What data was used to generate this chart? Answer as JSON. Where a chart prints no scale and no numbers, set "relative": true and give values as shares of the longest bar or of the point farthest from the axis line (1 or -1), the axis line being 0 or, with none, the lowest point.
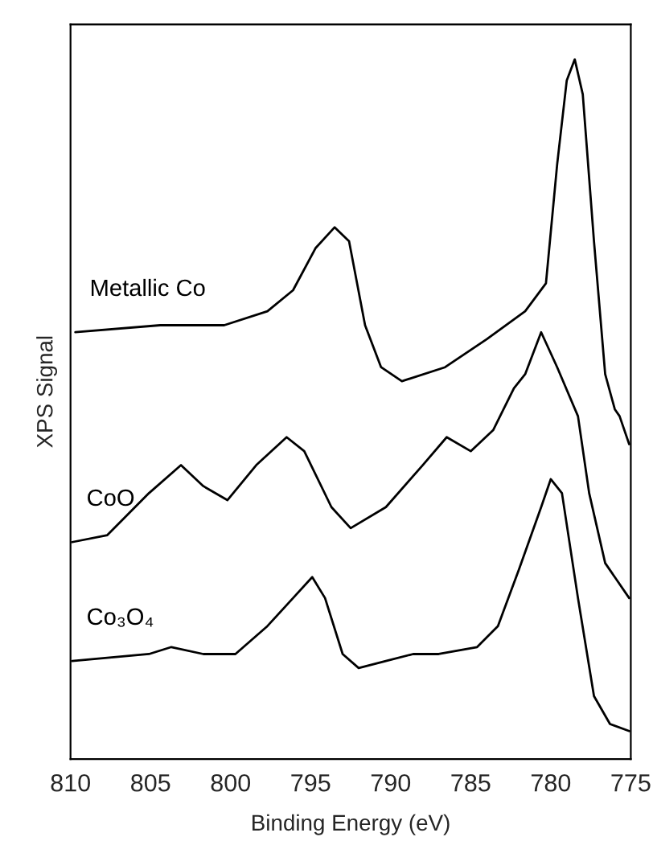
{
  "chart_data": {
    "type": "line",
    "relative": true,
    "xlabel": "Binding Energy (eV)",
    "ylabel": "XPS Signal",
    "xlim": [
      810,
      775
    ],
    "xticks": [
      810,
      805,
      800,
      795,
      790,
      785,
      780,
      775
    ],
    "grid": false,
    "legend": false,
    "marker": "none",
    "line_style": "solid",
    "tick_labels": "x",
    "series": [
      {
        "name": "Metallic Co",
        "color": "#000000",
        "x": [
          809.7,
          804.4,
          800.4,
          797.7,
          796.1,
          794.7,
          793.5,
          792.6,
          791.6,
          790.6,
          789.3,
          786.6,
          784.0,
          781.6,
          780.3,
          779.6,
          779.0,
          778.5,
          778.0,
          777.3,
          776.6,
          776.0,
          775.7,
          775.1
        ],
        "values": [
          0.61,
          0.62,
          0.62,
          0.64,
          0.67,
          0.73,
          0.76,
          0.74,
          0.62,
          0.56,
          0.54,
          0.56,
          0.6,
          0.64,
          0.68,
          0.85,
          0.97,
          1.0,
          0.95,
          0.74,
          0.55,
          0.5,
          0.49,
          0.45
        ]
      },
      {
        "name": "CoO",
        "color": "#000000",
        "x": [
          809.9,
          807.7,
          805.1,
          803.1,
          801.7,
          800.2,
          798.4,
          796.5,
          795.4,
          793.7,
          792.5,
          790.3,
          788.0,
          786.5,
          785.0,
          783.6,
          782.3,
          781.6,
          780.6,
          779.6,
          778.3,
          777.6,
          776.6,
          775.1
        ],
        "values": [
          0.31,
          0.32,
          0.38,
          0.42,
          0.39,
          0.37,
          0.42,
          0.46,
          0.44,
          0.36,
          0.33,
          0.36,
          0.42,
          0.46,
          0.44,
          0.47,
          0.53,
          0.55,
          0.61,
          0.56,
          0.49,
          0.38,
          0.28,
          0.23
        ]
      },
      {
        "name": "Co₃O₄",
        "color": "#000000",
        "x": [
          809.9,
          805.1,
          803.7,
          801.7,
          799.7,
          797.7,
          796.1,
          794.9,
          794.1,
          793.0,
          792.0,
          790.3,
          788.6,
          787.0,
          784.6,
          783.3,
          782.0,
          780.6,
          780.0,
          779.3,
          778.3,
          777.3,
          776.3,
          775.1
        ],
        "values": [
          0.14,
          0.15,
          0.16,
          0.15,
          0.15,
          0.19,
          0.23,
          0.26,
          0.23,
          0.15,
          0.13,
          0.14,
          0.15,
          0.15,
          0.16,
          0.19,
          0.27,
          0.36,
          0.4,
          0.38,
          0.23,
          0.09,
          0.05,
          0.04
        ]
      }
    ]
  }
}
